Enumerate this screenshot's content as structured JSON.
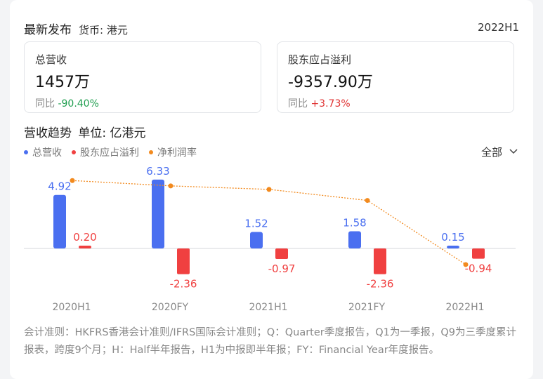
{
  "header": {
    "title": "最新发布",
    "currency": "货币: 港元",
    "period": "2022H1"
  },
  "kpis": [
    {
      "label": "总营收",
      "value": "1457万",
      "change_label": "同比",
      "change": "-90.40%",
      "change_color": "#1f9e4f"
    },
    {
      "label": "股东应占溢利",
      "value": "-9357.90万",
      "change_label": "同比",
      "change": "+3.73%",
      "change_color": "#e03232"
    }
  ],
  "trend": {
    "title": "营收趋势",
    "unit": "单位: 亿港元",
    "filter_label": "全部"
  },
  "legend": [
    {
      "label": "总营收",
      "color": "#4a6ff0"
    },
    {
      "label": "股东应占溢利",
      "color": "#f04040"
    },
    {
      "label": "净利润率",
      "color": "#f28a1e"
    }
  ],
  "chart_data": {
    "type": "bar",
    "categories": [
      "2020H1",
      "2020FY",
      "2021H1",
      "2021FY",
      "2022H1"
    ],
    "series": [
      {
        "name": "总营收",
        "values": [
          4.92,
          6.33,
          1.52,
          1.58,
          0.15
        ],
        "labels": [
          "4.92",
          "6.33",
          "1.52",
          "1.58",
          "0.15"
        ],
        "color": "#4a6ff0"
      },
      {
        "name": "股东应占溢利",
        "values": [
          0.2,
          -2.36,
          -0.97,
          -2.36,
          -0.94
        ],
        "labels": [
          "0.20",
          "-2.36",
          "-0.97",
          "-2.36",
          "-0.94"
        ],
        "color": "#f04040"
      }
    ],
    "line_series": {
      "name": "净利润率",
      "color": "#f28a1e",
      "values": [
        0.04,
        -0.37,
        -0.64,
        -1.49,
        -6.43
      ]
    }
  },
  "footnote": "会计准则：HKFRS香港会计准则/IFRS国际会计准则；Q：Quarter季度报告，Q1为一季报，Q9为三季度累计报表，跨度9个月；H：Half半年报告，H1为中报即半年报；FY：Financial Year年度报告。"
}
